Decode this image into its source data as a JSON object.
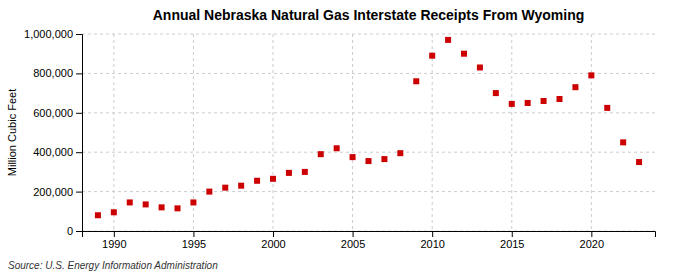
{
  "chart_data": {
    "type": "scatter",
    "title": "Annual Nebraska Natural Gas Interstate Receipts From Wyoming",
    "ylabel": "Million Cubic Feet",
    "source": "Source: U.S. Energy Information Administration",
    "x": [
      1989,
      1990,
      1991,
      1992,
      1993,
      1994,
      1995,
      1996,
      1997,
      1998,
      1999,
      2000,
      2001,
      2002,
      2003,
      2004,
      2005,
      2006,
      2007,
      2008,
      2009,
      2010,
      2011,
      2012,
      2013,
      2014,
      2015,
      2016,
      2017,
      2018,
      2019,
      2020,
      2021,
      2022,
      2023
    ],
    "values": [
      80000,
      95000,
      145000,
      135000,
      120000,
      115000,
      145000,
      200000,
      220000,
      230000,
      255000,
      265000,
      295000,
      300000,
      390000,
      420000,
      375000,
      355000,
      365000,
      395000,
      760000,
      890000,
      970000,
      900000,
      830000,
      700000,
      645000,
      650000,
      660000,
      670000,
      730000,
      790000,
      625000,
      450000,
      350000
    ],
    "color": "#cc0000",
    "marker": "square",
    "xlim": [
      1988,
      2024
    ],
    "xticks": [
      1990,
      1995,
      2000,
      2005,
      2010,
      2015,
      2020
    ],
    "ylim": [
      0,
      1000000
    ],
    "yticks": [
      0,
      {
        "value": 200000,
        "label": "200,000"
      },
      {
        "value": 400000,
        "label": "400,000"
      },
      {
        "value": 600000,
        "label": "600,000"
      },
      {
        "value": 800000,
        "label": "800,000"
      },
      {
        "value": 1000000,
        "label": "1,000,000"
      }
    ],
    "grid": true
  }
}
